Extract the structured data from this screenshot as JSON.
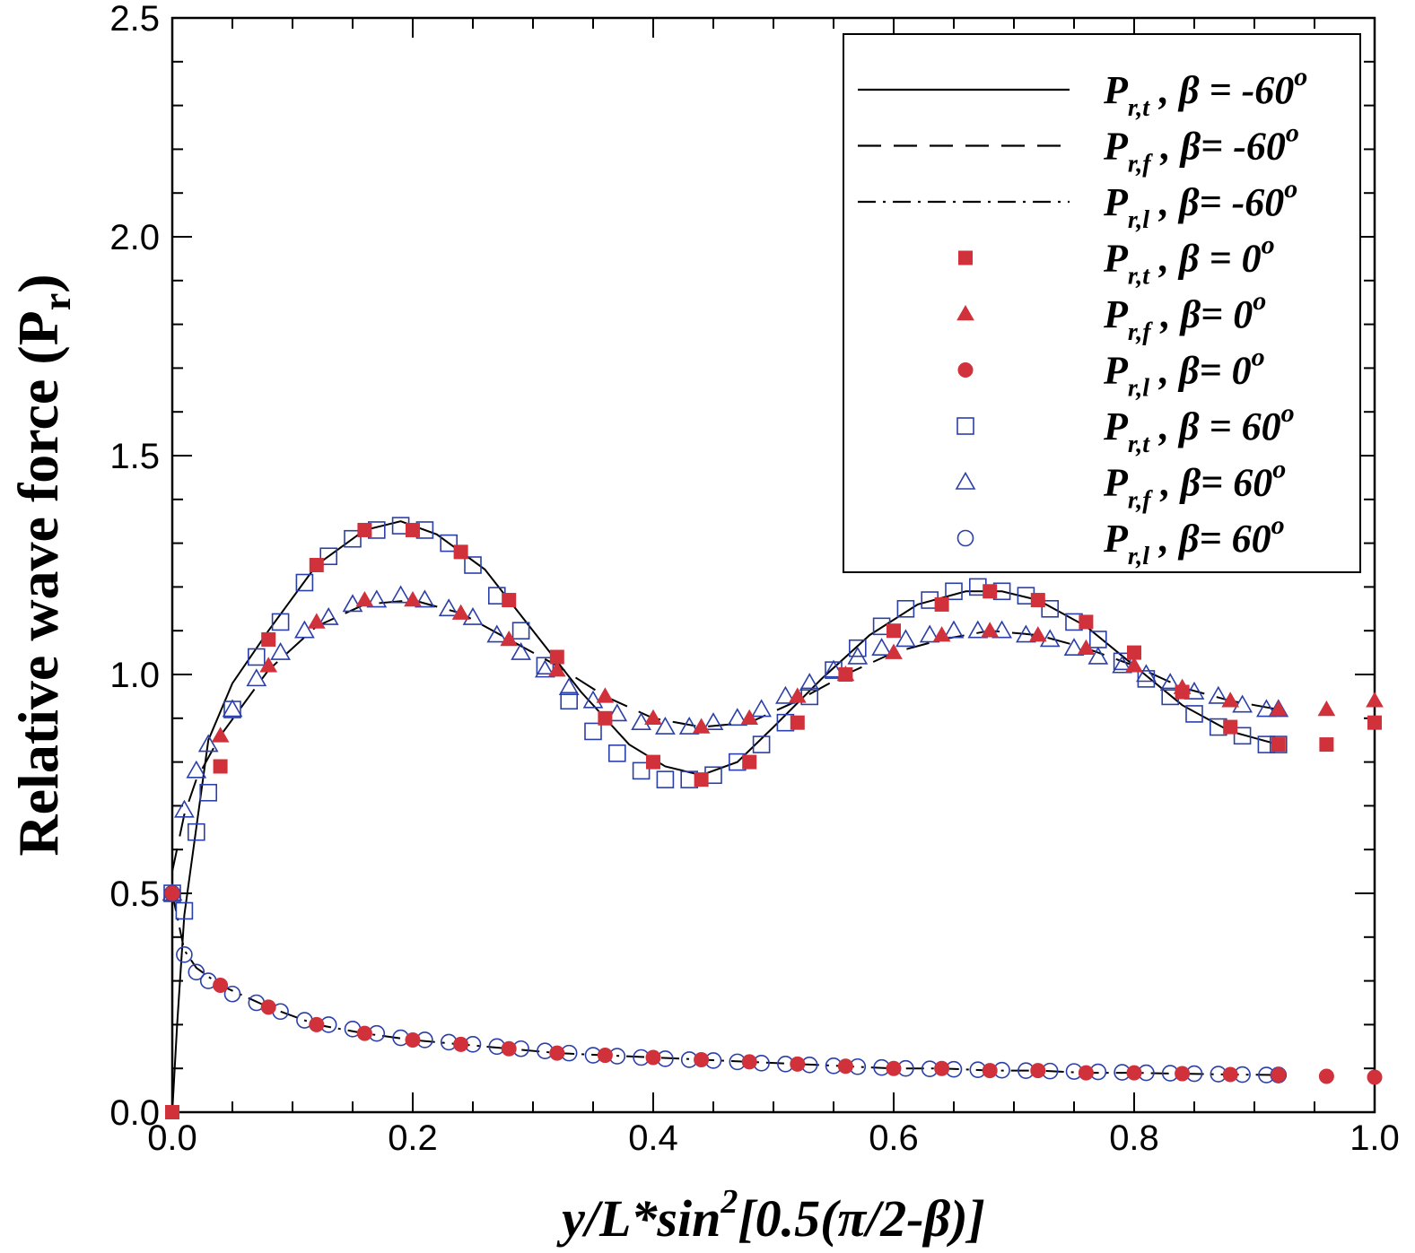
{
  "chart_data": {
    "type": "line",
    "title": "",
    "xlabel": "y/L*sin²[0.5(π/2-β)]",
    "ylabel": "Relative wave force (Pr)",
    "xlim": [
      0,
      1
    ],
    "ylim": [
      0,
      2.5
    ],
    "xticks": [
      "0.0",
      "0.2",
      "0.4",
      "0.6",
      "0.8",
      "1.0"
    ],
    "yticks": [
      "0.0",
      "0.5",
      "1.0",
      "1.5",
      "2.0",
      "2.5"
    ],
    "grid": false,
    "legend_position": "top-right",
    "colors": {
      "red": "#d0313b",
      "blue": "#2b3fa8",
      "black": "#000000"
    },
    "series": [
      {
        "name": "P_r,t , β = -60°",
        "label": {
          "main": "P",
          "sub": "r,t",
          "text": " , β = -60",
          "sup": "o"
        },
        "style": "solid",
        "marker": "none",
        "color": "#000000",
        "x": [
          0,
          0.004,
          0.01,
          0.02,
          0.03,
          0.05,
          0.08,
          0.12,
          0.16,
          0.19,
          0.22,
          0.26,
          0.3,
          0.34,
          0.38,
          0.41,
          0.44,
          0.47,
          0.5,
          0.54,
          0.58,
          0.62,
          0.66,
          0.69,
          0.72,
          0.76,
          0.8,
          0.84,
          0.88,
          0.92
        ],
        "y": [
          0.0,
          0.2,
          0.45,
          0.65,
          0.85,
          0.98,
          1.1,
          1.25,
          1.33,
          1.35,
          1.32,
          1.24,
          1.1,
          0.96,
          0.84,
          0.79,
          0.77,
          0.8,
          0.88,
          0.99,
          1.09,
          1.16,
          1.19,
          1.19,
          1.17,
          1.11,
          1.02,
          0.93,
          0.87,
          0.84
        ]
      },
      {
        "name": "P_r,f , β= -60°",
        "label": {
          "main": "P",
          "sub": "r,f",
          "text": " , β= -60",
          "sup": "o"
        },
        "style": "dashed",
        "marker": "none",
        "color": "#000000",
        "x": [
          0,
          0.01,
          0.02,
          0.04,
          0.08,
          0.12,
          0.16,
          0.2,
          0.24,
          0.28,
          0.32,
          0.36,
          0.4,
          0.44,
          0.48,
          0.52,
          0.56,
          0.6,
          0.64,
          0.68,
          0.72,
          0.76,
          0.8,
          0.84,
          0.88,
          0.92
        ],
        "y": [
          0.55,
          0.68,
          0.76,
          0.86,
          1.01,
          1.11,
          1.16,
          1.17,
          1.14,
          1.08,
          1.02,
          0.95,
          0.9,
          0.88,
          0.89,
          0.94,
          1.0,
          1.05,
          1.08,
          1.1,
          1.09,
          1.06,
          1.02,
          0.97,
          0.94,
          0.92
        ]
      },
      {
        "name": "P_r,l , β= -60°",
        "label": {
          "main": "P",
          "sub": "r,l",
          "text": " , β= -60",
          "sup": "o"
        },
        "style": "dashdot",
        "marker": "none",
        "color": "#000000",
        "x": [
          0.0,
          0.01,
          0.02,
          0.04,
          0.08,
          0.12,
          0.16,
          0.2,
          0.24,
          0.28,
          0.32,
          0.36,
          0.4,
          0.44,
          0.48,
          0.52,
          0.56,
          0.6,
          0.64,
          0.68,
          0.72,
          0.76,
          0.8,
          0.84,
          0.88,
          0.92
        ],
        "y": [
          0.5,
          0.37,
          0.33,
          0.29,
          0.24,
          0.2,
          0.18,
          0.165,
          0.155,
          0.145,
          0.135,
          0.13,
          0.125,
          0.12,
          0.115,
          0.11,
          0.105,
          0.1,
          0.1,
          0.095,
          0.095,
          0.09,
          0.09,
          0.088,
          0.086,
          0.085
        ]
      },
      {
        "name": "P_r,t , β = 0°",
        "label": {
          "main": "P",
          "sub": "r,t",
          "text": " , β = 0",
          "sup": "o"
        },
        "style": "none",
        "marker": "filled-square",
        "color": "#d0313b",
        "x": [
          0,
          0.04,
          0.08,
          0.12,
          0.16,
          0.2,
          0.24,
          0.28,
          0.32,
          0.36,
          0.4,
          0.44,
          0.48,
          0.52,
          0.56,
          0.6,
          0.64,
          0.68,
          0.72,
          0.76,
          0.8,
          0.84,
          0.88,
          0.92,
          0.96,
          1.0
        ],
        "y": [
          0.0,
          0.79,
          1.08,
          1.25,
          1.33,
          1.33,
          1.28,
          1.17,
          1.04,
          0.9,
          0.8,
          0.76,
          0.8,
          0.89,
          1.0,
          1.1,
          1.16,
          1.19,
          1.17,
          1.12,
          1.05,
          0.96,
          0.88,
          0.84,
          0.84,
          0.89
        ]
      },
      {
        "name": "P_r,f , β= 0°",
        "label": {
          "main": "P",
          "sub": "r,f",
          "text": " , β= 0",
          "sup": "o"
        },
        "style": "none",
        "marker": "filled-triangle",
        "color": "#d0313b",
        "x": [
          0.04,
          0.08,
          0.12,
          0.16,
          0.2,
          0.24,
          0.28,
          0.32,
          0.36,
          0.4,
          0.44,
          0.48,
          0.52,
          0.56,
          0.6,
          0.64,
          0.68,
          0.72,
          0.76,
          0.8,
          0.84,
          0.88,
          0.92,
          0.96,
          1.0
        ],
        "y": [
          0.86,
          1.02,
          1.12,
          1.17,
          1.17,
          1.14,
          1.08,
          1.01,
          0.95,
          0.9,
          0.88,
          0.9,
          0.95,
          1.0,
          1.05,
          1.09,
          1.1,
          1.09,
          1.06,
          1.02,
          0.97,
          0.94,
          0.92,
          0.92,
          0.94
        ]
      },
      {
        "name": "P_r,l , β= 0°",
        "label": {
          "main": "P",
          "sub": "r,l",
          "text": " , β= 0",
          "sup": "o"
        },
        "style": "none",
        "marker": "filled-circle",
        "color": "#d0313b",
        "x": [
          0.0,
          0.04,
          0.08,
          0.12,
          0.16,
          0.2,
          0.24,
          0.28,
          0.32,
          0.36,
          0.4,
          0.44,
          0.48,
          0.52,
          0.56,
          0.6,
          0.64,
          0.68,
          0.72,
          0.76,
          0.8,
          0.84,
          0.88,
          0.92,
          0.96,
          1.0
        ],
        "y": [
          0.5,
          0.29,
          0.24,
          0.2,
          0.18,
          0.165,
          0.155,
          0.145,
          0.135,
          0.13,
          0.125,
          0.12,
          0.115,
          0.11,
          0.105,
          0.1,
          0.1,
          0.095,
          0.095,
          0.09,
          0.09,
          0.088,
          0.086,
          0.085,
          0.082,
          0.08
        ]
      },
      {
        "name": "P_r,t , β = 60°",
        "label": {
          "main": "P",
          "sub": "r,t",
          "text": " , β = 60",
          "sup": "o"
        },
        "style": "none",
        "marker": "open-square",
        "color": "#2b3fa8",
        "x": [
          0.0,
          0.01,
          0.02,
          0.03,
          0.05,
          0.07,
          0.09,
          0.11,
          0.13,
          0.15,
          0.17,
          0.19,
          0.21,
          0.23,
          0.25,
          0.27,
          0.29,
          0.31,
          0.33,
          0.35,
          0.37,
          0.39,
          0.41,
          0.43,
          0.45,
          0.47,
          0.49,
          0.51,
          0.53,
          0.55,
          0.57,
          0.59,
          0.61,
          0.63,
          0.65,
          0.67,
          0.69,
          0.71,
          0.73,
          0.75,
          0.77,
          0.79,
          0.81,
          0.83,
          0.85,
          0.87,
          0.89,
          0.91,
          0.92
        ],
        "y": [
          0.5,
          0.46,
          0.64,
          0.73,
          0.92,
          1.04,
          1.12,
          1.21,
          1.27,
          1.31,
          1.33,
          1.34,
          1.33,
          1.3,
          1.25,
          1.18,
          1.1,
          1.02,
          0.94,
          0.87,
          0.82,
          0.78,
          0.76,
          0.76,
          0.77,
          0.8,
          0.84,
          0.89,
          0.95,
          1.01,
          1.06,
          1.11,
          1.15,
          1.17,
          1.19,
          1.2,
          1.19,
          1.18,
          1.15,
          1.12,
          1.08,
          1.03,
          0.99,
          0.95,
          0.91,
          0.88,
          0.86,
          0.84,
          0.84
        ]
      },
      {
        "name": "P_r,f , β= 60°",
        "label": {
          "main": "P",
          "sub": "r,f",
          "text": " , β= 60",
          "sup": "o"
        },
        "style": "none",
        "marker": "open-triangle",
        "color": "#2b3fa8",
        "x": [
          0.0,
          0.01,
          0.02,
          0.03,
          0.05,
          0.07,
          0.09,
          0.11,
          0.13,
          0.15,
          0.17,
          0.19,
          0.21,
          0.23,
          0.25,
          0.27,
          0.29,
          0.31,
          0.33,
          0.35,
          0.37,
          0.39,
          0.41,
          0.43,
          0.45,
          0.47,
          0.49,
          0.51,
          0.53,
          0.55,
          0.57,
          0.59,
          0.61,
          0.63,
          0.65,
          0.67,
          0.69,
          0.71,
          0.73,
          0.75,
          0.77,
          0.79,
          0.81,
          0.83,
          0.85,
          0.87,
          0.89,
          0.91,
          0.92
        ],
        "y": [
          0.5,
          0.69,
          0.78,
          0.84,
          0.92,
          0.99,
          1.05,
          1.1,
          1.13,
          1.16,
          1.17,
          1.18,
          1.17,
          1.15,
          1.13,
          1.09,
          1.05,
          1.01,
          0.97,
          0.94,
          0.91,
          0.89,
          0.88,
          0.88,
          0.89,
          0.9,
          0.92,
          0.95,
          0.98,
          1.01,
          1.04,
          1.06,
          1.08,
          1.09,
          1.1,
          1.1,
          1.1,
          1.09,
          1.08,
          1.06,
          1.04,
          1.02,
          1.0,
          0.98,
          0.96,
          0.95,
          0.93,
          0.92,
          0.92
        ]
      },
      {
        "name": "P_r,l , β= 60°",
        "label": {
          "main": "P",
          "sub": "r,l",
          "text": " , β= 60",
          "sup": "o"
        },
        "style": "none",
        "marker": "open-circle",
        "color": "#2b3fa8",
        "x": [
          0.0,
          0.01,
          0.02,
          0.03,
          0.05,
          0.07,
          0.09,
          0.11,
          0.13,
          0.15,
          0.17,
          0.19,
          0.21,
          0.23,
          0.25,
          0.27,
          0.29,
          0.31,
          0.33,
          0.35,
          0.37,
          0.39,
          0.41,
          0.43,
          0.45,
          0.47,
          0.49,
          0.51,
          0.53,
          0.55,
          0.57,
          0.59,
          0.61,
          0.63,
          0.65,
          0.67,
          0.69,
          0.71,
          0.73,
          0.75,
          0.77,
          0.79,
          0.81,
          0.83,
          0.85,
          0.87,
          0.89,
          0.91,
          0.92
        ],
        "y": [
          0.5,
          0.36,
          0.32,
          0.3,
          0.27,
          0.25,
          0.23,
          0.21,
          0.2,
          0.19,
          0.18,
          0.17,
          0.165,
          0.16,
          0.155,
          0.15,
          0.145,
          0.14,
          0.135,
          0.13,
          0.128,
          0.125,
          0.122,
          0.12,
          0.118,
          0.115,
          0.112,
          0.11,
          0.108,
          0.106,
          0.104,
          0.102,
          0.1,
          0.099,
          0.098,
          0.097,
          0.096,
          0.095,
          0.094,
          0.093,
          0.092,
          0.091,
          0.09,
          0.089,
          0.088,
          0.087,
          0.086,
          0.085,
          0.085
        ]
      }
    ]
  }
}
